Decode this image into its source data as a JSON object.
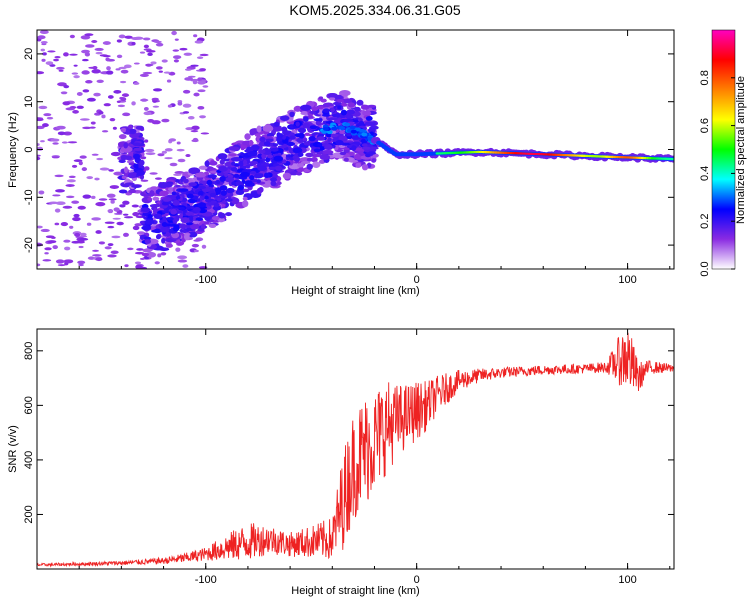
{
  "title": "KOM5.2025.334.06.31.G05",
  "chart_data": [
    {
      "type": "heatmap",
      "xlabel": "Height of straight line (km)",
      "ylabel": "Frequency (Hz)",
      "xlim": [
        -180,
        122
      ],
      "ylim": [
        -25,
        25
      ],
      "xticks": [
        -100,
        0,
        100
      ],
      "yticks": [
        -20,
        -10,
        0,
        10,
        20
      ],
      "xtick_labels": [
        "-100",
        "0",
        "100"
      ],
      "ytick_labels": [
        "-20",
        "-10",
        "0",
        "10",
        "20"
      ],
      "colorbar": {
        "label": "Normalized spectral amplitude",
        "range": [
          0,
          1
        ],
        "ticks": [
          0.0,
          0.2,
          0.4,
          0.6,
          0.8
        ],
        "tick_labels": [
          "0.0",
          "0.2",
          "0.4",
          "0.6",
          "0.8"
        ],
        "colors": [
          "#ffffff",
          "#8a2be2",
          "#0000ff",
          "#00ffff",
          "#00ff00",
          "#ffff00",
          "#ff8000",
          "#ff0000",
          "#ff00c0"
        ]
      },
      "ridge": [
        {
          "x": -130,
          "y": -16
        },
        {
          "x": -100,
          "y": -10
        },
        {
          "x": -80,
          "y": -4
        },
        {
          "x": -60,
          "y": 1
        },
        {
          "x": -45,
          "y": 4
        },
        {
          "x": -35,
          "y": 5
        },
        {
          "x": -20,
          "y": 2
        },
        {
          "x": -10,
          "y": -1
        },
        {
          "x": 0,
          "y": -1
        },
        {
          "x": 30,
          "y": -0.5
        },
        {
          "x": 60,
          "y": -1
        },
        {
          "x": 90,
          "y": -1.5
        },
        {
          "x": 122,
          "y": -2
        }
      ]
    },
    {
      "type": "line",
      "xlabel": "Height of straight line (km)",
      "ylabel": "SNR (v/v)",
      "xlim": [
        -180,
        122
      ],
      "ylim": [
        0,
        880
      ],
      "xticks": [
        -100,
        0,
        100
      ],
      "yticks": [
        200,
        400,
        600,
        800
      ],
      "xtick_labels": [
        "-100",
        "0",
        "100"
      ],
      "ytick_labels": [
        "200",
        "400",
        "600",
        "800"
      ],
      "color": "#ee2222",
      "series": [
        {
          "name": "SNR",
          "x": [
            -180,
            -160,
            -140,
            -120,
            -110,
            -100,
            -90,
            -80,
            -70,
            -60,
            -50,
            -40,
            -35,
            -30,
            -25,
            -20,
            -15,
            -10,
            -5,
            0,
            5,
            10,
            20,
            30,
            40,
            60,
            80,
            90,
            95,
            100,
            105,
            110,
            122
          ],
          "y": [
            15,
            18,
            22,
            30,
            40,
            55,
            80,
            100,
            110,
            90,
            100,
            110,
            250,
            380,
            430,
            470,
            520,
            540,
            560,
            580,
            600,
            640,
            690,
            710,
            720,
            730,
            735,
            740,
            760,
            780,
            700,
            740,
            735
          ],
          "noise": [
            5,
            6,
            8,
            12,
            18,
            25,
            50,
            70,
            55,
            45,
            60,
            80,
            180,
            200,
            210,
            190,
            180,
            140,
            120,
            110,
            90,
            70,
            40,
            25,
            20,
            18,
            18,
            20,
            80,
            130,
            60,
            25,
            15
          ]
        }
      ]
    }
  ]
}
